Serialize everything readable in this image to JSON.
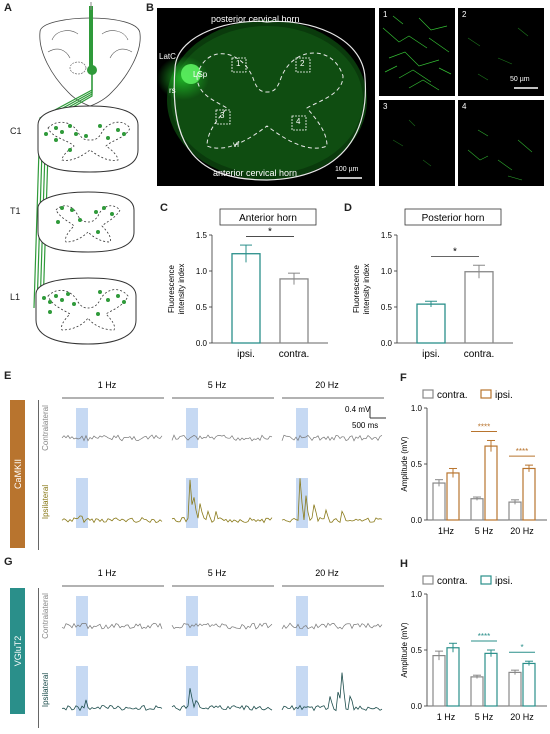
{
  "panels": {
    "A": {
      "letter": "A",
      "segments": [
        "C1",
        "T1",
        "L1"
      ]
    },
    "B": {
      "letter": "B",
      "labels": {
        "top": "posterior cervical horn",
        "bottom": "anterior cervical horn",
        "latc": "LatC",
        "lsp": "LSp",
        "rs": "rs",
        "vf": "vf",
        "boxes": [
          "1",
          "2",
          "3",
          "4"
        ]
      },
      "scale_main": "100 µm",
      "scale_inset": "50 µm",
      "insets": [
        "1",
        "2",
        "3",
        "4"
      ]
    },
    "C": {
      "letter": "C"
    },
    "D": {
      "letter": "D"
    },
    "E": {
      "letter": "E",
      "side_label": "CaMKII",
      "freqs": [
        "1 Hz",
        "5 Hz",
        "20 Hz"
      ],
      "row_labels": [
        "Contralateral",
        "Ipsilateral"
      ],
      "scale_v": "0.4 mV",
      "scale_t": "500 ms"
    },
    "F": {
      "letter": "F"
    },
    "G": {
      "letter": "G",
      "side_label": "VGluT2",
      "freqs": [
        "1 Hz",
        "5 Hz",
        "20 Hz"
      ],
      "row_labels": [
        "Contralateral",
        "Ipsilateral"
      ]
    },
    "H": {
      "letter": "H"
    }
  },
  "colors": {
    "green_fluor": "#22c02a",
    "tract": "#2f9a3a",
    "camkii": "#b8742e",
    "camkii_trace": "#8a7a1a",
    "vglut2": "#2a8f8a",
    "vglut2_trace": "#1d4d4c",
    "stim": "#b8cff0",
    "contra_trace": "#777777"
  },
  "chart_data": [
    {
      "id": "C",
      "type": "bar",
      "title": "Anterior horn",
      "ylabel": "Fluorescence intensity index",
      "categories": [
        "ipsi.",
        "contra."
      ],
      "values": [
        1.24,
        0.89
      ],
      "errors": [
        0.12,
        0.08
      ],
      "ylim": [
        0,
        1.5
      ],
      "yticks": [
        "0.0",
        "0.5",
        "1.0",
        "1.5"
      ],
      "significance": "*"
    },
    {
      "id": "D",
      "type": "bar",
      "title": "Posterior horn",
      "ylabel": "Fluorescence intensity index",
      "categories": [
        "ipsi.",
        "contra."
      ],
      "values": [
        0.54,
        0.99
      ],
      "errors": [
        0.04,
        0.09
      ],
      "ylim": [
        0,
        1.5
      ],
      "yticks": [
        "0.0",
        "0.5",
        "1.0",
        "1.5"
      ],
      "significance": "*"
    },
    {
      "id": "F",
      "type": "bar",
      "ylabel": "Amplitude (mV)",
      "categories": [
        "1Hz",
        "5 Hz",
        "20 Hz"
      ],
      "series": [
        {
          "name": "contra.",
          "values": [
            0.33,
            0.19,
            0.16
          ],
          "errors": [
            0.03,
            0.015,
            0.02
          ]
        },
        {
          "name": "ipsi.",
          "values": [
            0.42,
            0.66,
            0.46
          ],
          "errors": [
            0.04,
            0.05,
            0.03
          ]
        }
      ],
      "ylim": [
        0,
        1.0
      ],
      "yticks": [
        "0.0",
        "0.5",
        "1.0"
      ],
      "significance": [
        "",
        "****",
        "****"
      ],
      "legend": "top"
    },
    {
      "id": "H",
      "type": "bar",
      "ylabel": "Amplitude (mV)",
      "categories": [
        "1 Hz",
        "5 Hz",
        "20 Hz"
      ],
      "series": [
        {
          "name": "contra.",
          "values": [
            0.45,
            0.26,
            0.3
          ],
          "errors": [
            0.04,
            0.015,
            0.02
          ]
        },
        {
          "name": "ipsi.",
          "values": [
            0.52,
            0.47,
            0.38
          ],
          "errors": [
            0.04,
            0.03,
            0.02
          ]
        }
      ],
      "ylim": [
        0,
        1.0
      ],
      "yticks": [
        "0.0",
        "0.5",
        "1.0"
      ],
      "significance": [
        "",
        "****",
        "*"
      ],
      "legend": "top"
    }
  ]
}
